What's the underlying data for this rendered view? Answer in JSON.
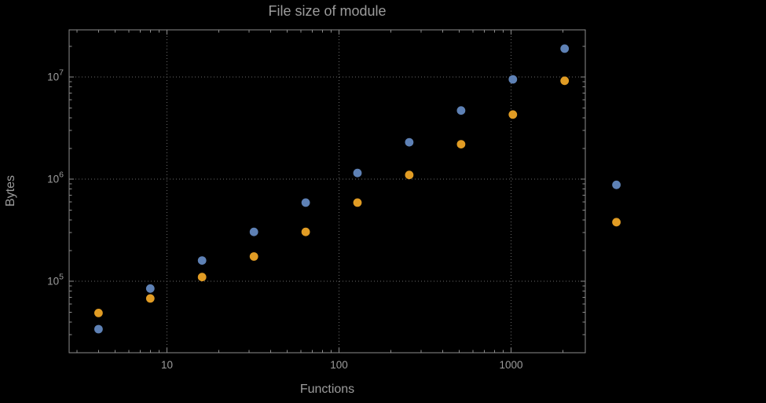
{
  "chart_data": {
    "type": "scatter",
    "title": "File size of module",
    "xlabel": "Functions",
    "ylabel": "Bytes",
    "x_scale": "log",
    "y_scale": "log",
    "xlim": [
      2.7,
      2700
    ],
    "ylim": [
      20000,
      29000000
    ],
    "x_major_ticks": [
      10,
      100,
      1000
    ],
    "x_tick_labels": [
      "10",
      "100",
      "1000"
    ],
    "y_major_ticks": [
      100000,
      1000000,
      10000000
    ],
    "y_tick_base": "10",
    "y_tick_exponents": [
      "5",
      "6",
      "7"
    ],
    "grid": {
      "style": "dotted",
      "major_only": true,
      "color": "#6a6a6a"
    },
    "frame_color": "#8c8c8c",
    "text_color": "#9c9c9c",
    "background": "#000000",
    "points_clipped_to_frame": false,
    "x": [
      4,
      8,
      16,
      32,
      64,
      128,
      256,
      512,
      1024,
      2048,
      4096
    ],
    "series": [
      {
        "name": "series-1-blue",
        "color": "#5E81B5",
        "values": [
          34000,
          85000,
          160000,
          305000,
          590000,
          1150000,
          2300000,
          4700000,
          9500000,
          19000000,
          880000
        ]
      },
      {
        "name": "series-2-orange",
        "color": "#E19C24",
        "values": [
          49000,
          68000,
          110000,
          175000,
          305000,
          590000,
          1100000,
          2200000,
          4300000,
          9200000,
          380000
        ]
      }
    ]
  }
}
